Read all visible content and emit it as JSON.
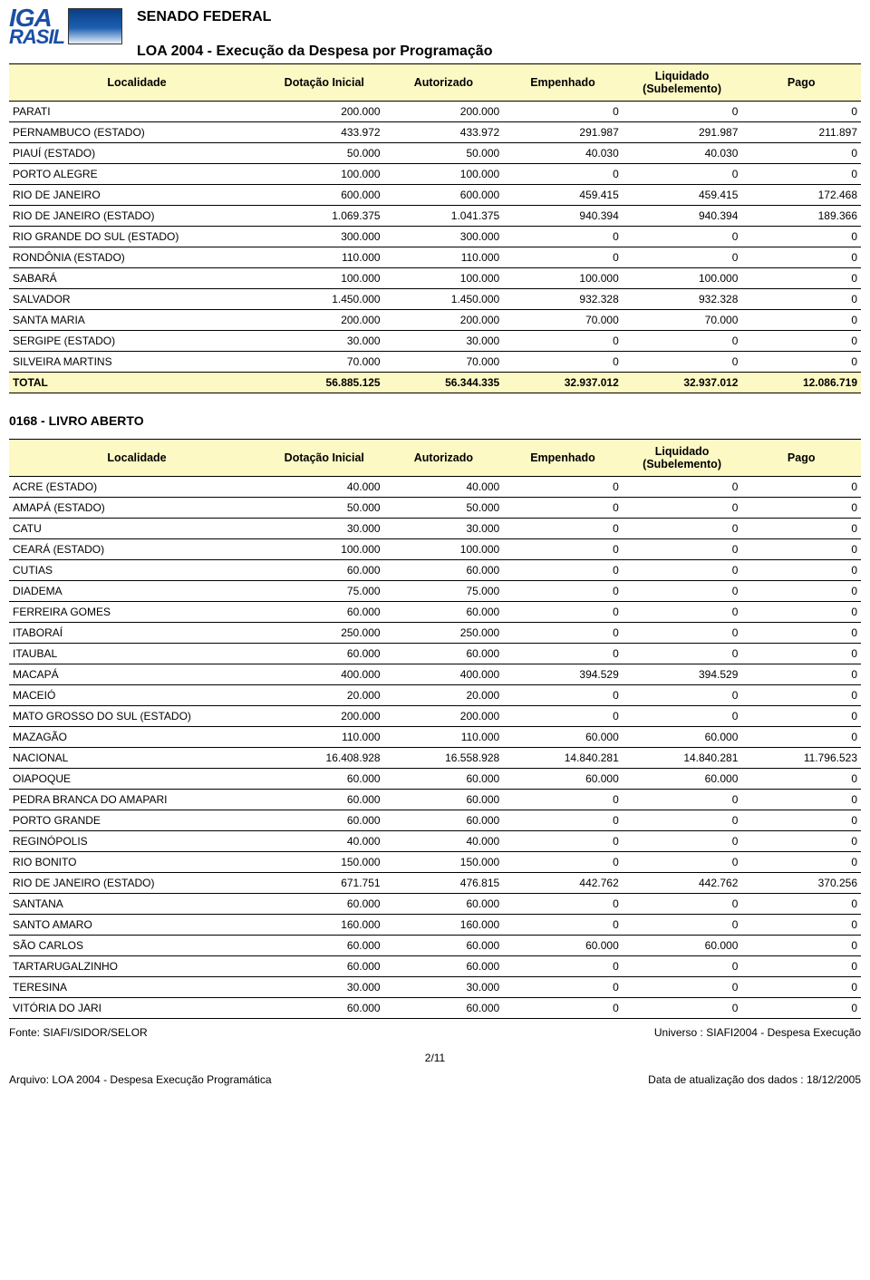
{
  "header": {
    "logo_line1": "IGA",
    "logo_line2": "RASIL",
    "senado": "SENADO FEDERAL",
    "report_title": "LOA 2004 - Execução da Despesa por Programação"
  },
  "columns": {
    "localidade": "Localidade",
    "dotacao": "Dotação Inicial",
    "autorizado": "Autorizado",
    "empenhado": "Empenhado",
    "liquidado": "Liquidado (Subelemento)",
    "pago": "Pago"
  },
  "table1": {
    "rows": [
      {
        "loc": "PARATI",
        "c1": "200.000",
        "c2": "200.000",
        "c3": "0",
        "c4": "0",
        "c5": "0"
      },
      {
        "loc": "PERNAMBUCO (ESTADO)",
        "c1": "433.972",
        "c2": "433.972",
        "c3": "291.987",
        "c4": "291.987",
        "c5": "211.897"
      },
      {
        "loc": "PIAUÍ (ESTADO)",
        "c1": "50.000",
        "c2": "50.000",
        "c3": "40.030",
        "c4": "40.030",
        "c5": "0"
      },
      {
        "loc": "PORTO ALEGRE",
        "c1": "100.000",
        "c2": "100.000",
        "c3": "0",
        "c4": "0",
        "c5": "0"
      },
      {
        "loc": "RIO DE JANEIRO",
        "c1": "600.000",
        "c2": "600.000",
        "c3": "459.415",
        "c4": "459.415",
        "c5": "172.468"
      },
      {
        "loc": "RIO DE JANEIRO (ESTADO)",
        "c1": "1.069.375",
        "c2": "1.041.375",
        "c3": "940.394",
        "c4": "940.394",
        "c5": "189.366"
      },
      {
        "loc": "RIO GRANDE DO SUL (ESTADO)",
        "c1": "300.000",
        "c2": "300.000",
        "c3": "0",
        "c4": "0",
        "c5": "0"
      },
      {
        "loc": "RONDÔNIA (ESTADO)",
        "c1": "110.000",
        "c2": "110.000",
        "c3": "0",
        "c4": "0",
        "c5": "0"
      },
      {
        "loc": "SABARÁ",
        "c1": "100.000",
        "c2": "100.000",
        "c3": "100.000",
        "c4": "100.000",
        "c5": "0"
      },
      {
        "loc": "SALVADOR",
        "c1": "1.450.000",
        "c2": "1.450.000",
        "c3": "932.328",
        "c4": "932.328",
        "c5": "0"
      },
      {
        "loc": "SANTA MARIA",
        "c1": "200.000",
        "c2": "200.000",
        "c3": "70.000",
        "c4": "70.000",
        "c5": "0"
      },
      {
        "loc": "SERGIPE (ESTADO)",
        "c1": "30.000",
        "c2": "30.000",
        "c3": "0",
        "c4": "0",
        "c5": "0"
      },
      {
        "loc": "SILVEIRA MARTINS",
        "c1": "70.000",
        "c2": "70.000",
        "c3": "0",
        "c4": "0",
        "c5": "0"
      }
    ],
    "total": {
      "loc": "TOTAL",
      "c1": "56.885.125",
      "c2": "56.344.335",
      "c3": "32.937.012",
      "c4": "32.937.012",
      "c5": "12.086.719"
    }
  },
  "section2": {
    "heading": "0168 - LIVRO ABERTO"
  },
  "table2": {
    "rows": [
      {
        "loc": "ACRE (ESTADO)",
        "c1": "40.000",
        "c2": "40.000",
        "c3": "0",
        "c4": "0",
        "c5": "0"
      },
      {
        "loc": "AMAPÁ (ESTADO)",
        "c1": "50.000",
        "c2": "50.000",
        "c3": "0",
        "c4": "0",
        "c5": "0"
      },
      {
        "loc": "CATU",
        "c1": "30.000",
        "c2": "30.000",
        "c3": "0",
        "c4": "0",
        "c5": "0"
      },
      {
        "loc": "CEARÁ (ESTADO)",
        "c1": "100.000",
        "c2": "100.000",
        "c3": "0",
        "c4": "0",
        "c5": "0"
      },
      {
        "loc": "CUTIAS",
        "c1": "60.000",
        "c2": "60.000",
        "c3": "0",
        "c4": "0",
        "c5": "0"
      },
      {
        "loc": "DIADEMA",
        "c1": "75.000",
        "c2": "75.000",
        "c3": "0",
        "c4": "0",
        "c5": "0"
      },
      {
        "loc": "FERREIRA GOMES",
        "c1": "60.000",
        "c2": "60.000",
        "c3": "0",
        "c4": "0",
        "c5": "0"
      },
      {
        "loc": "ITABORAÍ",
        "c1": "250.000",
        "c2": "250.000",
        "c3": "0",
        "c4": "0",
        "c5": "0"
      },
      {
        "loc": "ITAUBAL",
        "c1": "60.000",
        "c2": "60.000",
        "c3": "0",
        "c4": "0",
        "c5": "0"
      },
      {
        "loc": "MACAPÁ",
        "c1": "400.000",
        "c2": "400.000",
        "c3": "394.529",
        "c4": "394.529",
        "c5": "0"
      },
      {
        "loc": "MACEIÓ",
        "c1": "20.000",
        "c2": "20.000",
        "c3": "0",
        "c4": "0",
        "c5": "0"
      },
      {
        "loc": "MATO GROSSO DO SUL (ESTADO)",
        "c1": "200.000",
        "c2": "200.000",
        "c3": "0",
        "c4": "0",
        "c5": "0"
      },
      {
        "loc": "MAZAGÃO",
        "c1": "110.000",
        "c2": "110.000",
        "c3": "60.000",
        "c4": "60.000",
        "c5": "0"
      },
      {
        "loc": "NACIONAL",
        "c1": "16.408.928",
        "c2": "16.558.928",
        "c3": "14.840.281",
        "c4": "14.840.281",
        "c5": "11.796.523"
      },
      {
        "loc": "OIAPOQUE",
        "c1": "60.000",
        "c2": "60.000",
        "c3": "60.000",
        "c4": "60.000",
        "c5": "0"
      },
      {
        "loc": "PEDRA BRANCA DO AMAPARI",
        "c1": "60.000",
        "c2": "60.000",
        "c3": "0",
        "c4": "0",
        "c5": "0"
      },
      {
        "loc": "PORTO GRANDE",
        "c1": "60.000",
        "c2": "60.000",
        "c3": "0",
        "c4": "0",
        "c5": "0"
      },
      {
        "loc": "REGINÓPOLIS",
        "c1": "40.000",
        "c2": "40.000",
        "c3": "0",
        "c4": "0",
        "c5": "0"
      },
      {
        "loc": "RIO BONITO",
        "c1": "150.000",
        "c2": "150.000",
        "c3": "0",
        "c4": "0",
        "c5": "0"
      },
      {
        "loc": "RIO DE JANEIRO (ESTADO)",
        "c1": "671.751",
        "c2": "476.815",
        "c3": "442.762",
        "c4": "442.762",
        "c5": "370.256"
      },
      {
        "loc": "SANTANA",
        "c1": "60.000",
        "c2": "60.000",
        "c3": "0",
        "c4": "0",
        "c5": "0"
      },
      {
        "loc": "SANTO AMARO",
        "c1": "160.000",
        "c2": "160.000",
        "c3": "0",
        "c4": "0",
        "c5": "0"
      },
      {
        "loc": "SÃO CARLOS",
        "c1": "60.000",
        "c2": "60.000",
        "c3": "60.000",
        "c4": "60.000",
        "c5": "0"
      },
      {
        "loc": "TARTARUGALZINHO",
        "c1": "60.000",
        "c2": "60.000",
        "c3": "0",
        "c4": "0",
        "c5": "0"
      },
      {
        "loc": "TERESINA",
        "c1": "30.000",
        "c2": "30.000",
        "c3": "0",
        "c4": "0",
        "c5": "0"
      },
      {
        "loc": "VITÓRIA DO JARI",
        "c1": "60.000",
        "c2": "60.000",
        "c3": "0",
        "c4": "0",
        "c5": "0"
      }
    ]
  },
  "footer": {
    "fonte": "Fonte: SIAFI/SIDOR/SELOR",
    "universo": "Universo : SIAFI2004 - Despesa Execução",
    "page": "2/11",
    "arquivo": "Arquivo: LOA 2004 - Despesa Execução Programática",
    "data": "Data de atualização dos dados : 18/12/2005"
  },
  "col_widths": {
    "loc": "30%",
    "num": "14%"
  }
}
